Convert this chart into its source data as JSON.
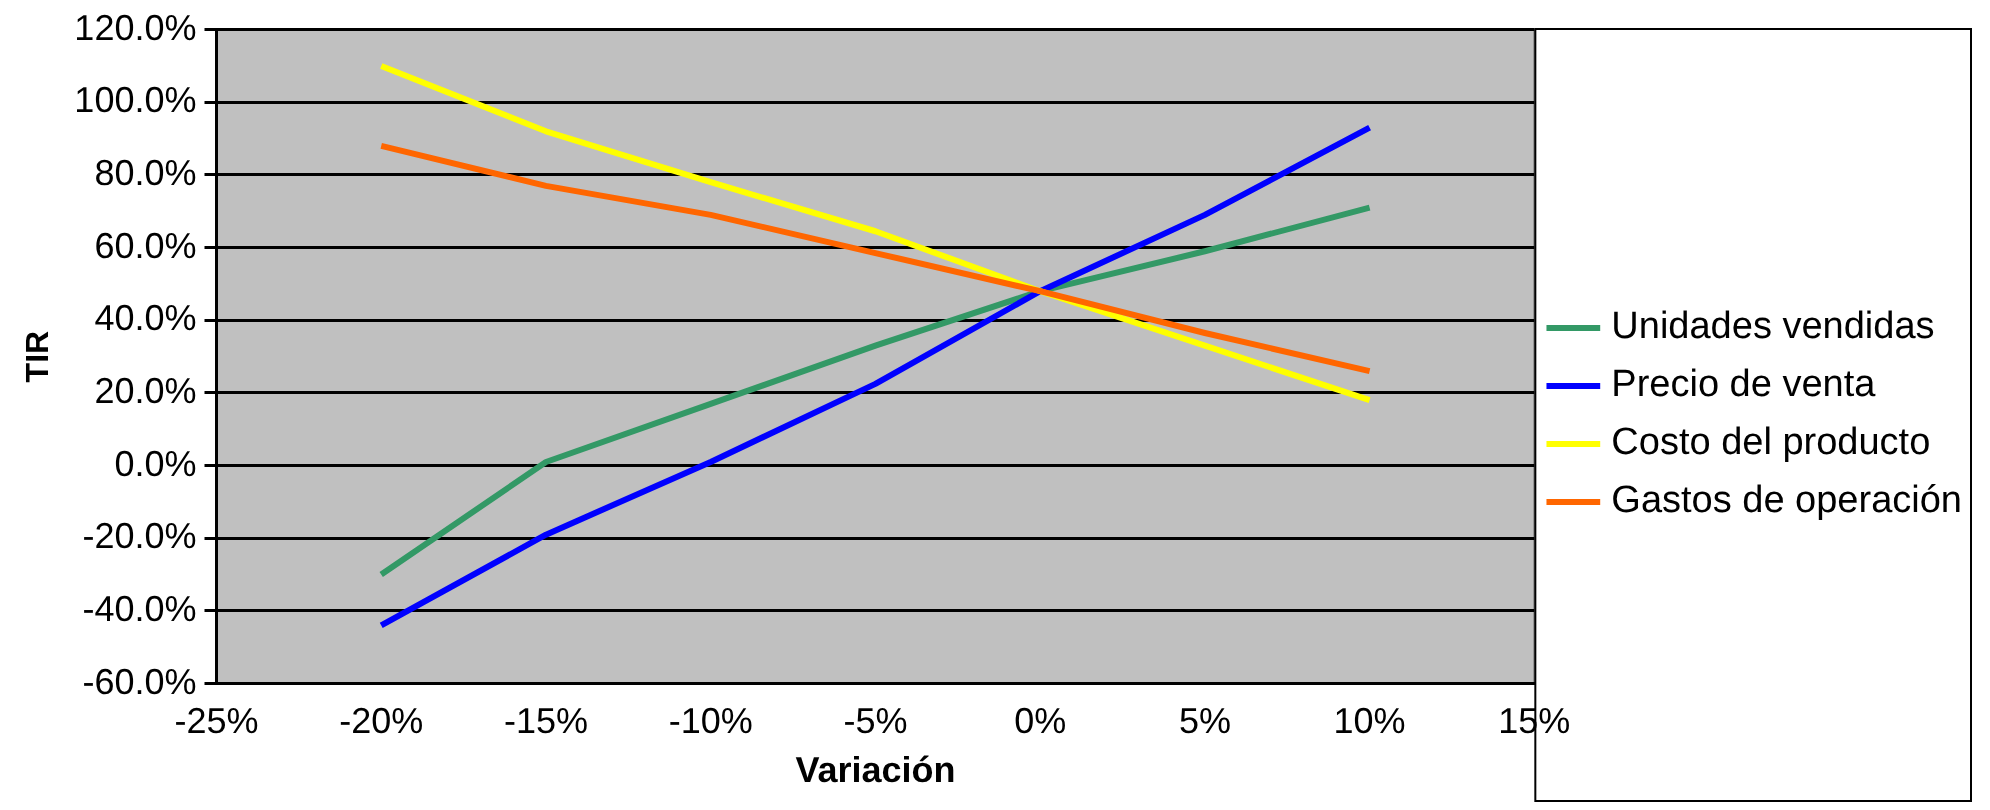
{
  "chart_data": {
    "type": "line",
    "xlabel": "Variación",
    "ylabel": "TIR",
    "x": [
      -20,
      -15,
      -10,
      -5,
      0,
      5,
      10
    ],
    "series": [
      {
        "name": "Unidades vendidas",
        "color": "#339966",
        "values": [
          -30,
          1,
          17,
          33,
          48,
          59,
          71
        ]
      },
      {
        "name": "Precio de venta",
        "color": "#0000ff",
        "values": [
          -44,
          -19,
          1,
          22.5,
          48,
          69,
          93
        ]
      },
      {
        "name": "Costo del producto",
        "color": "#ffff00",
        "values": [
          110,
          92,
          78,
          64.5,
          48,
          33,
          18
        ]
      },
      {
        "name": "Gastos de operación",
        "color": "#ff6600",
        "values": [
          88,
          77,
          69,
          58.5,
          48,
          36.5,
          26
        ]
      }
    ],
    "xlim": [
      -25,
      15
    ],
    "xticks": [
      {
        "value": -25,
        "label": "-25%"
      },
      {
        "value": -20,
        "label": "-20%"
      },
      {
        "value": -15,
        "label": "-15%"
      },
      {
        "value": -10,
        "label": "-10%"
      },
      {
        "value": -5,
        "label": "-5%"
      },
      {
        "value": 0,
        "label": "0%"
      },
      {
        "value": 5,
        "label": "5%"
      },
      {
        "value": 10,
        "label": "10%"
      },
      {
        "value": 15,
        "label": "15%"
      }
    ],
    "ylim": [
      -60,
      120
    ],
    "yticks": [
      {
        "value": -60,
        "label": "-60.0%"
      },
      {
        "value": -40,
        "label": "-40.0%"
      },
      {
        "value": -20,
        "label": "-20.0%"
      },
      {
        "value": 0,
        "label": "0.0%"
      },
      {
        "value": 20,
        "label": "20.0%"
      },
      {
        "value": 40,
        "label": "40.0%"
      },
      {
        "value": 60,
        "label": "60.0%"
      },
      {
        "value": 80,
        "label": "80.0%"
      },
      {
        "value": 100,
        "label": "100.0%"
      },
      {
        "value": 120,
        "label": "120.0%"
      }
    ],
    "grid": "y",
    "legend": "right",
    "marker": "none",
    "line_style": "solid"
  }
}
